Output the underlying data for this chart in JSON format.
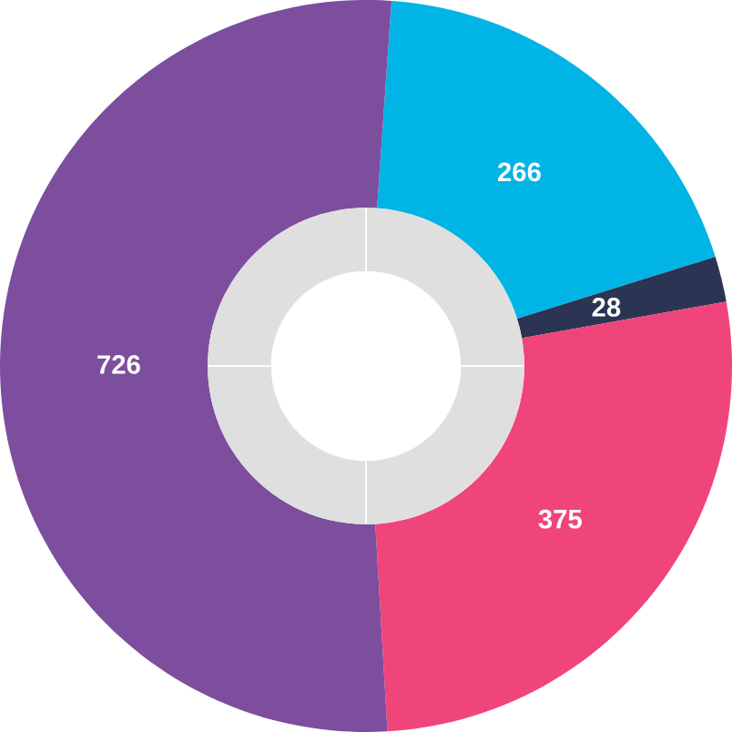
{
  "chart_data": {
    "type": "donut",
    "categories": [
      null,
      null,
      null,
      null
    ],
    "values": [
      266,
      28,
      375,
      726
    ],
    "colors": [
      "#00b4e6",
      "#2b3553",
      "#f0457a",
      "#7d4e9e"
    ],
    "data_labels": true
  }
}
